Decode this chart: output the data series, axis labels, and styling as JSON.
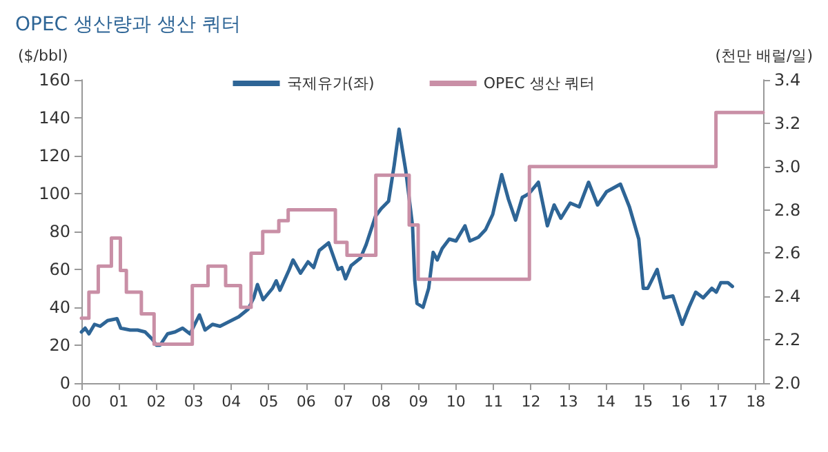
{
  "chart_data": {
    "type": "line",
    "title": "OPEC 생산량과 생산 쿼터",
    "ylabel": "($/bbl)",
    "y2label": "(천만 배럴/일)",
    "xlim": [
      2000,
      2018.2
    ],
    "xticks": [
      {
        "value": 2000,
        "label": "00"
      },
      {
        "value": 2001,
        "label": "01"
      },
      {
        "value": 2002,
        "label": "02"
      },
      {
        "value": 2003,
        "label": "03"
      },
      {
        "value": 2004,
        "label": "04"
      },
      {
        "value": 2005,
        "label": "05"
      },
      {
        "value": 2006,
        "label": "06"
      },
      {
        "value": 2007,
        "label": "07"
      },
      {
        "value": 2008,
        "label": "08"
      },
      {
        "value": 2009,
        "label": "09"
      },
      {
        "value": 2010,
        "label": "10"
      },
      {
        "value": 2011,
        "label": "11"
      },
      {
        "value": 2012,
        "label": "12"
      },
      {
        "value": 2013,
        "label": "13"
      },
      {
        "value": 2014,
        "label": "14"
      },
      {
        "value": 2015,
        "label": "15"
      },
      {
        "value": 2016,
        "label": "16"
      },
      {
        "value": 2017,
        "label": "17"
      },
      {
        "value": 2018,
        "label": "18"
      }
    ],
    "ylim": [
      0,
      160
    ],
    "yticks": [
      0,
      20,
      40,
      60,
      80,
      100,
      120,
      140,
      160
    ],
    "y2lim": [
      2.0,
      3.4
    ],
    "y2ticks": [
      {
        "value": 2.0,
        "label": "2.0"
      },
      {
        "value": 2.2,
        "label": "2.2"
      },
      {
        "value": 2.4,
        "label": "2.4"
      },
      {
        "value": 2.6,
        "label": "2.6"
      },
      {
        "value": 2.8,
        "label": "2.8"
      },
      {
        "value": 3.0,
        "label": "3.0"
      },
      {
        "value": 3.2,
        "label": "3.2"
      },
      {
        "value": 3.4,
        "label": "3.4"
      }
    ],
    "grid": false,
    "legend": "top",
    "marker": "none",
    "line_style": "solid",
    "series": [
      {
        "name": "국제유가(좌)",
        "type": "line",
        "color": "#2e6596",
        "x": [
          2000,
          2000.1,
          2000.2,
          2000.35,
          2000.5,
          2000.7,
          2000.95,
          2001.05,
          2001.3,
          2001.5,
          2001.7,
          2001.9,
          2002,
          2002.1,
          2002.3,
          2002.5,
          2002.7,
          2002.9,
          2003.15,
          2003.3,
          2003.5,
          2003.7,
          2003.9,
          2004.2,
          2004.45,
          2004.6,
          2004.7,
          2004.85,
          2005.1,
          2005.2,
          2005.3,
          2005.55,
          2005.65,
          2005.85,
          2006.05,
          2006.2,
          2006.35,
          2006.6,
          2006.85,
          2006.95,
          2007.05,
          2007.2,
          2007.45,
          2007.6,
          2007.85,
          2008,
          2008.2,
          2008.35,
          2008.48,
          2008.66,
          2008.84,
          2008.9,
          2008.96,
          2009.12,
          2009.27,
          2009.39,
          2009.5,
          2009.63,
          2009.82,
          2010,
          2010.24,
          2010.37,
          2010.6,
          2010.79,
          2010.98,
          2011.22,
          2011.4,
          2011.59,
          2011.77,
          2011.95,
          2012.2,
          2012.44,
          2012.62,
          2012.8,
          2013.05,
          2013.29,
          2013.54,
          2013.78,
          2014.02,
          2014.39,
          2014.63,
          2014.88,
          2015,
          2015.12,
          2015.37,
          2015.55,
          2015.79,
          2016.04,
          2016.22,
          2016.4,
          2016.6,
          2016.83,
          2016.95,
          2017.07,
          2017.26,
          2017.38
        ],
        "values": [
          27,
          29,
          26,
          31,
          30,
          33,
          34,
          29,
          28,
          28,
          27,
          23,
          20,
          20,
          26,
          27,
          29,
          26,
          36,
          28,
          31,
          30,
          32,
          35,
          39,
          45,
          52,
          44,
          50,
          54,
          49,
          60,
          65,
          58,
          64,
          61,
          70,
          74,
          60,
          61,
          55,
          62,
          66,
          73,
          88,
          92,
          96,
          115,
          134,
          112,
          83,
          54,
          42,
          40,
          50,
          69,
          65,
          71,
          76,
          75,
          83,
          75,
          77,
          81,
          89,
          110,
          97,
          86,
          98,
          100,
          106,
          83,
          94,
          87,
          95,
          93,
          106,
          94,
          101,
          105,
          93,
          76,
          50,
          50,
          60,
          45,
          46,
          31,
          40,
          48,
          45,
          50,
          48,
          53,
          53,
          51
        ]
      },
      {
        "name": "OPEC 생산 쿼터",
        "type": "step",
        "axis": "y2",
        "color": "#c98fa6",
        "x": [
          2000,
          2000.2,
          2000.45,
          2000.8,
          2001.04,
          2001.2,
          2001.6,
          2001.94,
          2002.96,
          2003.38,
          2003.85,
          2004.25,
          2004.53,
          2004.84,
          2005.27,
          2005.52,
          2006.78,
          2007.09,
          2007.86,
          2008.75,
          2008.99,
          2011.96,
          2016.94,
          2018.2
        ],
        "values": [
          2.3,
          2.42,
          2.54,
          2.67,
          2.52,
          2.42,
          2.32,
          2.18,
          2.45,
          2.54,
          2.45,
          2.35,
          2.6,
          2.7,
          2.75,
          2.8,
          2.65,
          2.59,
          2.96,
          2.73,
          2.48,
          3.0,
          3.25,
          3.25
        ]
      }
    ]
  }
}
